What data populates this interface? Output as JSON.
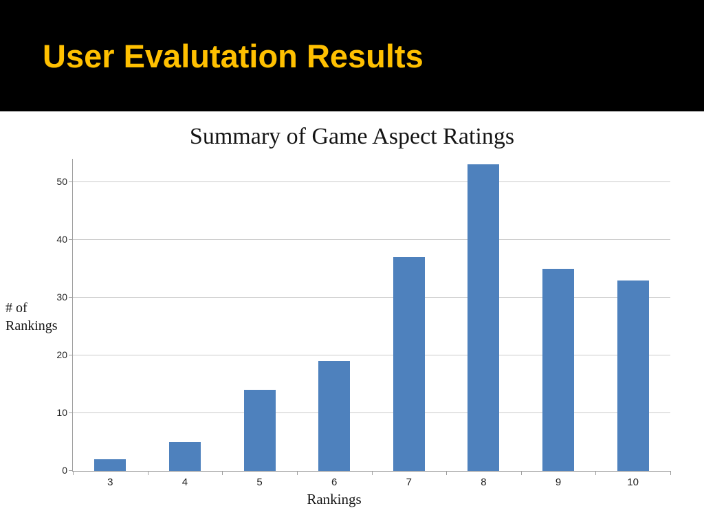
{
  "slide": {
    "title": "User Evalutation Results"
  },
  "colors": {
    "header_bg": "#000000",
    "title_color": "#FFC000",
    "bar_color": "#4E81BD",
    "grid_color": "#C9C9C9",
    "axis_color": "#9E9E9E"
  },
  "chart_data": {
    "type": "bar",
    "title": "Summary of Game Aspect Ratings",
    "categories": [
      "3",
      "4",
      "5",
      "6",
      "7",
      "8",
      "9",
      "10"
    ],
    "values": [
      2,
      5,
      14,
      19,
      37,
      53,
      35,
      33
    ],
    "xlabel": "Rankings",
    "ylabel": "# of Rankings",
    "ylabel_lines": [
      "# of",
      "Rankings"
    ],
    "ylim": [
      0,
      54
    ],
    "yticks": [
      0,
      10,
      20,
      30,
      40,
      50
    ],
    "grid": true,
    "legend": "none"
  }
}
